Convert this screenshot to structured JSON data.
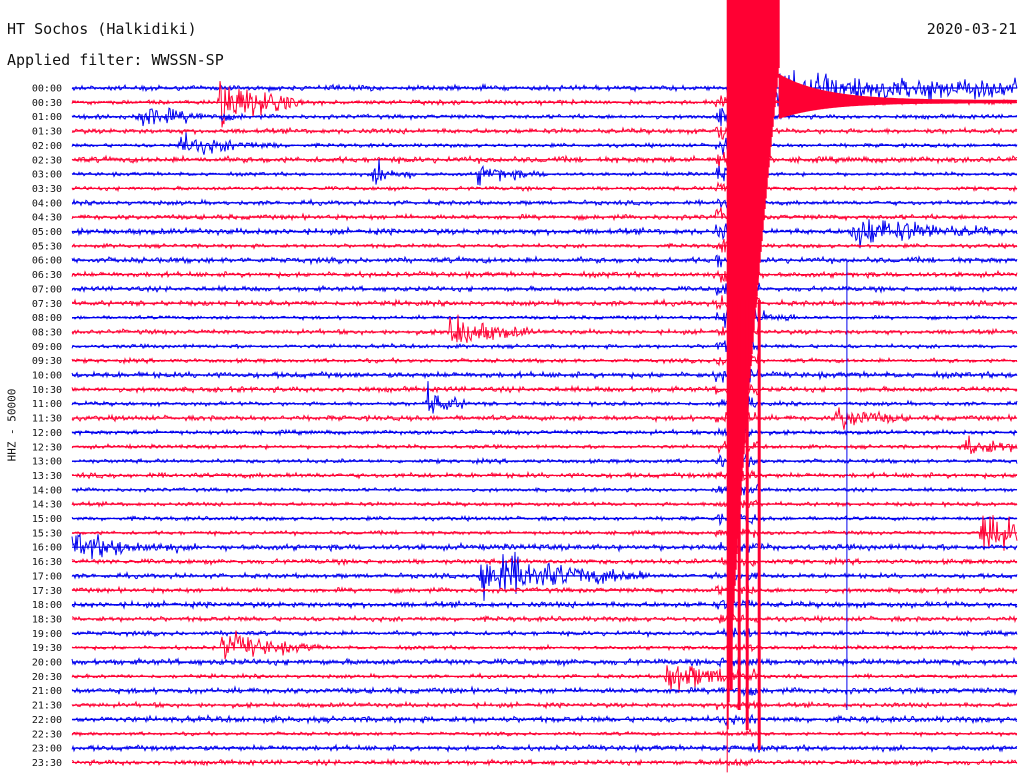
{
  "header": {
    "station": "HT Sochos (Halkidiki)",
    "filter": "Applied filter: WWSSN-SP",
    "date": "2020-03-21"
  },
  "chart_data": {
    "type": "line",
    "title": "HT Sochos (Halkidiki)",
    "subtitle": "Applied filter: WWSSN-SP",
    "date": "2020-03-21",
    "ylabel": "HHZ - 50000",
    "xlabel": "",
    "grid": false,
    "legend": "none",
    "colors": [
      "#0000ee",
      "#ff0033"
    ],
    "traces": [
      "00:00",
      "00:30",
      "01:00",
      "01:30",
      "02:00",
      "02:30",
      "03:00",
      "03:30",
      "04:00",
      "04:30",
      "05:00",
      "05:30",
      "06:00",
      "06:30",
      "07:00",
      "07:30",
      "08:00",
      "08:30",
      "09:00",
      "09:30",
      "10:00",
      "10:30",
      "11:00",
      "11:30",
      "12:00",
      "12:30",
      "13:00",
      "13:30",
      "14:00",
      "14:30",
      "15:00",
      "15:30",
      "16:00",
      "16:30",
      "17:00",
      "17:30",
      "18:00",
      "18:30",
      "19:00",
      "19:30",
      "20:00",
      "20:30",
      "21:00",
      "21:30",
      "22:00",
      "22:30",
      "23:00",
      "23:30"
    ],
    "events": [
      {
        "trace": "00:30",
        "minute": 4.7,
        "amplitude": 22,
        "duration": 1.2
      },
      {
        "trace": "01:00",
        "minute": 2.1,
        "amplitude": 8,
        "duration": 1.5
      },
      {
        "trace": "02:00",
        "minute": 3.4,
        "amplitude": 8,
        "duration": 1.5
      },
      {
        "trace": "03:00",
        "minute": 9.6,
        "amplitude": 9,
        "duration": 0.6
      },
      {
        "trace": "03:00",
        "minute": 12.9,
        "amplitude": 7,
        "duration": 1.0
      },
      {
        "trace": "05:00",
        "minute": 24.8,
        "amplitude": 12,
        "duration": 2.0
      },
      {
        "trace": "08:00",
        "minute": 20.8,
        "amplitude": 12,
        "duration": 1.0
      },
      {
        "trace": "08:30",
        "minute": 12.0,
        "amplitude": 14,
        "duration": 1.2
      },
      {
        "trace": "11:00",
        "minute": 11.3,
        "amplitude": 12,
        "duration": 0.6
      },
      {
        "trace": "11:30",
        "minute": 24.3,
        "amplitude": 10,
        "duration": 1.0
      },
      {
        "trace": "12:30",
        "minute": 28.4,
        "amplitude": 9,
        "duration": 1.0
      },
      {
        "trace": "15:30",
        "minute": 28.9,
        "amplitude": 22,
        "duration": 1.0
      },
      {
        "trace": "16:00",
        "minute": 0.0,
        "amplitude": 10,
        "duration": 1.6
      },
      {
        "trace": "17:00",
        "minute": 13.0,
        "amplitude": 20,
        "duration": 2.4
      },
      {
        "trace": "19:30",
        "minute": 4.8,
        "amplitude": 12,
        "duration": 1.4
      },
      {
        "trace": "20:30",
        "minute": 18.9,
        "amplitude": 14,
        "duration": 1.3
      }
    ],
    "mainshock": {
      "trace": "00:00",
      "minute": 20.8,
      "amplitude": "clipped",
      "coda_until_trace": "23:30"
    }
  }
}
